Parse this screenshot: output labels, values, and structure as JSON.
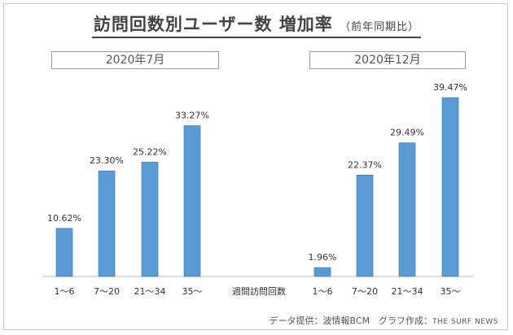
{
  "header": {
    "title": "訪問回数別ユーザー数 増加率",
    "subtitle": "（前年同期比）"
  },
  "periods": {
    "left": "2020年7月",
    "right": "2020年12月"
  },
  "axis_center_label": "週間訪問回数",
  "footer": {
    "source": "データ提供：波情報BCM　グラフ作成：",
    "brand": "THE SURF NEWS"
  },
  "colors": {
    "bar": "#5b9bd5",
    "bar_edge": "#2e75b6"
  },
  "chart_data": [
    {
      "type": "bar",
      "title": "2020年7月",
      "categories": [
        "1～6",
        "7～20",
        "21～34",
        "35～"
      ],
      "values": [
        10.62,
        23.3,
        25.22,
        33.27
      ],
      "value_labels": [
        "10.62%",
        "23.30%",
        "25.22%",
        "33.27%"
      ],
      "ylim": [
        0,
        40
      ],
      "grid": false
    },
    {
      "type": "bar",
      "title": "2020年12月",
      "categories": [
        "1～6",
        "7～20",
        "21～34",
        "35～"
      ],
      "values": [
        1.96,
        22.37,
        29.49,
        39.47
      ],
      "value_labels": [
        "1.96%",
        "22.37%",
        "29.49%",
        "39.47%"
      ],
      "ylim": [
        0,
        40
      ],
      "grid": false
    }
  ]
}
